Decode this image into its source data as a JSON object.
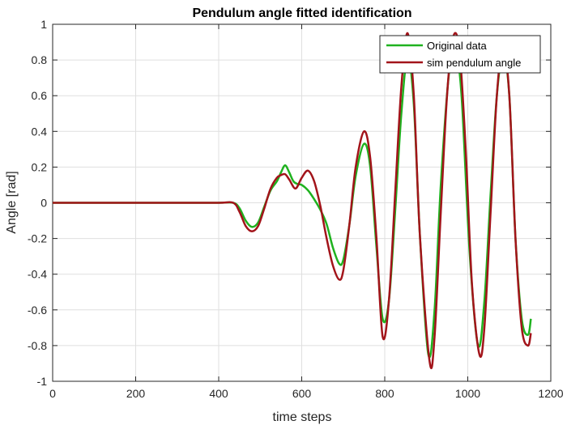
{
  "chart_data": {
    "type": "line",
    "title": "Pendulum angle fitted identification",
    "xlabel": "time steps",
    "ylabel": "Angle [rad]",
    "xlim": [
      0,
      1200
    ],
    "ylim": [
      -1,
      1
    ],
    "xticks": [
      0,
      200,
      400,
      600,
      800,
      1000,
      1200
    ],
    "xtick_labels": [
      "0",
      "200",
      "400",
      "600",
      "800",
      "1000",
      "1200"
    ],
    "yticks": [
      -1,
      -0.8,
      -0.6,
      -0.4,
      -0.2,
      0,
      0.2,
      0.4,
      0.6,
      0.8,
      1
    ],
    "ytick_labels": [
      "-1",
      "-0.8",
      "-0.6",
      "-0.4",
      "-0.2",
      "0",
      "0.2",
      "0.4",
      "0.6",
      "0.8",
      "1"
    ],
    "grid": true,
    "legend_position": "top-right",
    "series": [
      {
        "name": "Original data",
        "color": "#1fb21f",
        "x": [
          0,
          100,
          200,
          300,
          400,
          435,
          450,
          465,
          480,
          495,
          510,
          525,
          540,
          550,
          560,
          570,
          580,
          590,
          600,
          615,
          630,
          645,
          660,
          675,
          690,
          700,
          715,
          730,
          750,
          765,
          780,
          795,
          810,
          825,
          840,
          855,
          870,
          885,
          905,
          920,
          935,
          955,
          970,
          985,
          1005,
          1025,
          1040,
          1055,
          1070,
          1085,
          1100,
          1115,
          1130,
          1145,
          1152
        ],
        "y": [
          0,
          0,
          0,
          0,
          0,
          0,
          -0.03,
          -0.1,
          -0.135,
          -0.11,
          -0.02,
          0.07,
          0.12,
          0.17,
          0.21,
          0.17,
          0.12,
          0.105,
          0.1,
          0.07,
          0.02,
          -0.04,
          -0.12,
          -0.25,
          -0.34,
          -0.32,
          -0.12,
          0.15,
          0.33,
          0.2,
          -0.25,
          -0.65,
          -0.55,
          -0.05,
          0.5,
          0.82,
          0.55,
          -0.2,
          -0.85,
          -0.6,
          0.1,
          0.73,
          0.85,
          0.6,
          -0.3,
          -0.8,
          -0.55,
          0.05,
          0.6,
          0.83,
          0.6,
          -0.2,
          -0.65,
          -0.74,
          -0.65
        ]
      },
      {
        "name": "sim pendulum angle",
        "color": "#a2141a",
        "x": [
          0,
          100,
          200,
          300,
          400,
          435,
          450,
          465,
          480,
          495,
          510,
          525,
          540,
          550,
          560,
          570,
          585,
          600,
          615,
          630,
          645,
          660,
          675,
          690,
          700,
          715,
          730,
          750,
          765,
          780,
          795,
          810,
          825,
          840,
          855,
          870,
          885,
          908,
          920,
          935,
          950,
          965,
          980,
          995,
          1010,
          1028,
          1040,
          1055,
          1070,
          1085,
          1100,
          1115,
          1130,
          1145,
          1152
        ],
        "y": [
          0,
          0,
          0,
          0,
          0,
          0,
          -0.05,
          -0.13,
          -0.16,
          -0.13,
          -0.03,
          0.08,
          0.14,
          0.155,
          0.16,
          0.13,
          0.08,
          0.14,
          0.18,
          0.12,
          -0.02,
          -0.2,
          -0.35,
          -0.43,
          -0.38,
          -0.12,
          0.2,
          0.4,
          0.25,
          -0.2,
          -0.75,
          -0.55,
          0.05,
          0.65,
          0.95,
          0.6,
          -0.2,
          -0.89,
          -0.75,
          -0.05,
          0.6,
          0.93,
          0.85,
          0.3,
          -0.45,
          -0.85,
          -0.7,
          -0.05,
          0.6,
          0.88,
          0.6,
          -0.2,
          -0.7,
          -0.8,
          -0.73
        ]
      }
    ]
  }
}
